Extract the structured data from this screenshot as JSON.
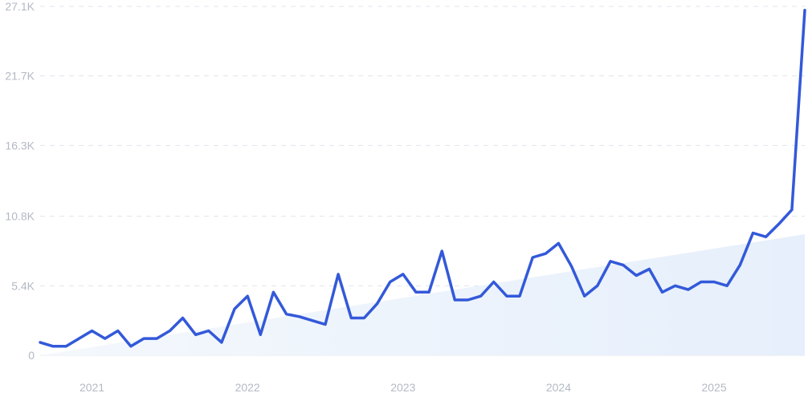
{
  "chart_data": {
    "type": "line",
    "title": "",
    "xlabel": "",
    "ylabel": "",
    "grid": true,
    "legend": "none",
    "colors": {
      "line": "#3359d9",
      "area_start": "#f4f8fd",
      "area_end": "#e6effb",
      "grid": "#dfe4ec",
      "tick_text": "#b3b9c4"
    },
    "xlim": [
      "2020-09-01",
      "2025-08-01"
    ],
    "ylim": [
      0,
      27100
    ],
    "y_ticks": [
      {
        "value": 0,
        "label": "0"
      },
      {
        "value": 5400,
        "label": "5.4K"
      },
      {
        "value": 10800,
        "label": "10.8K"
      },
      {
        "value": 16300,
        "label": "16.3K"
      },
      {
        "value": 21700,
        "label": "21.7K"
      },
      {
        "value": 27100,
        "label": "27.1K"
      }
    ],
    "x_ticks": [
      {
        "value": "2021-01-01",
        "label": "2021"
      },
      {
        "value": "2022-01-01",
        "label": "2022"
      },
      {
        "value": "2023-01-01",
        "label": "2023"
      },
      {
        "value": "2024-01-01",
        "label": "2024"
      },
      {
        "value": "2025-01-01",
        "label": "2025"
      }
    ],
    "trend_area": {
      "x": [
        "2020-09-01",
        "2025-08-01"
      ],
      "y": [
        0,
        9400
      ]
    },
    "series": [
      {
        "x": [
          "2020-09-01",
          "2020-10-01",
          "2020-11-01",
          "2020-12-01",
          "2021-01-01",
          "2021-02-01",
          "2021-03-01",
          "2021-04-01",
          "2021-05-01",
          "2021-06-01",
          "2021-07-01",
          "2021-08-01",
          "2021-09-01",
          "2021-10-01",
          "2021-11-01",
          "2021-12-01",
          "2022-01-01",
          "2022-02-01",
          "2022-03-01",
          "2022-04-01",
          "2022-05-01",
          "2022-06-01",
          "2022-07-01",
          "2022-08-01",
          "2022-09-01",
          "2022-10-01",
          "2022-11-01",
          "2022-12-01",
          "2023-01-01",
          "2023-02-01",
          "2023-03-01",
          "2023-04-01",
          "2023-05-01",
          "2023-06-01",
          "2023-07-01",
          "2023-08-01",
          "2023-09-01",
          "2023-10-01",
          "2023-11-01",
          "2023-12-01",
          "2024-01-01",
          "2024-02-01",
          "2024-03-01",
          "2024-04-01",
          "2024-05-01",
          "2024-06-01",
          "2024-07-01",
          "2024-08-01",
          "2024-09-01",
          "2024-10-01",
          "2024-11-01",
          "2024-12-01",
          "2025-01-01",
          "2025-02-01",
          "2025-03-01",
          "2025-04-01",
          "2025-05-01",
          "2025-06-01",
          "2025-07-01",
          "2025-08-01"
        ],
        "y": [
          1000,
          700,
          700,
          1300,
          1900,
          1300,
          1900,
          700,
          1300,
          1300,
          1900,
          2900,
          1600,
          1900,
          1000,
          3600,
          4600,
          1600,
          4900,
          3200,
          3000,
          2700,
          2400,
          6300,
          2900,
          2900,
          4000,
          5700,
          6300,
          4900,
          4900,
          8100,
          4300,
          4300,
          4600,
          5700,
          4600,
          4600,
          7600,
          7900,
          8700,
          6900,
          4600,
          5400,
          7300,
          7000,
          6200,
          6700,
          4900,
          5400,
          5100,
          5700,
          5700,
          5400,
          7000,
          9500,
          9200,
          10200,
          11300,
          26800
        ]
      }
    ]
  }
}
